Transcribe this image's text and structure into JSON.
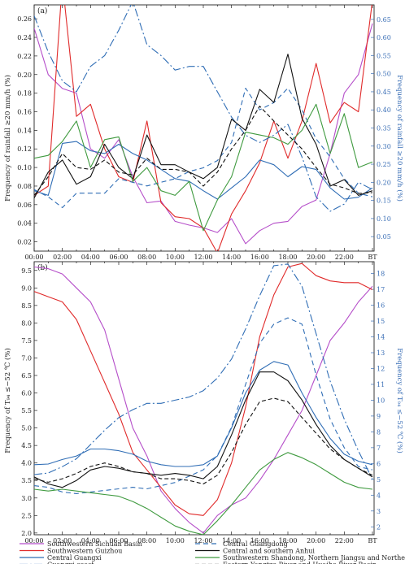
{
  "chart_data": [
    {
      "type": "line",
      "panel_label": "(a)",
      "ylabel": "Frequency of rainfall ≥20 mm/h (%)",
      "y2label": "Frequency of rainfall ≥20 mm/h (%)",
      "ylim": [
        0.01,
        0.275
      ],
      "y2lim": [
        0.01,
        0.69
      ],
      "yticks": [
        "0.02",
        "0.04",
        "0.06",
        "0.08",
        "0.10",
        "0.12",
        "0.14",
        "0.16",
        "0.18",
        "0.20",
        "0.22",
        "0.24",
        "0.26"
      ],
      "y2ticks": [
        "0.05",
        "0.10",
        "0.15",
        "0.20",
        "0.25",
        "0.30",
        "0.35",
        "0.40",
        "0.45",
        "0.50",
        "0.55",
        "0.60",
        "0.65"
      ],
      "xticks": [
        "00:00",
        "02:00",
        "04:00",
        "06:00",
        "08:00",
        "10:00",
        "12:00",
        "14:00",
        "16:00",
        "18:00",
        "20:00",
        "22:00",
        "BT"
      ],
      "x": [
        0,
        1,
        2,
        3,
        4,
        5,
        6,
        7,
        8,
        9,
        10,
        11,
        12,
        13,
        14,
        15,
        16,
        17,
        18,
        19,
        20,
        21,
        22,
        23,
        24
      ],
      "series": [
        {
          "name": "Southwestern Sichuan Basin",
          "color": "#b54ec9",
          "dash": "",
          "axis": "left",
          "values": [
            0.25,
            0.2,
            0.185,
            0.18,
            0.12,
            0.11,
            0.13,
            0.09,
            0.062,
            0.064,
            0.042,
            0.038,
            0.035,
            0.03,
            0.045,
            0.018,
            0.032,
            0.04,
            0.042,
            0.058,
            0.065,
            0.115,
            0.18,
            0.2,
            0.255
          ]
        },
        {
          "name": "Southwestern Guizhou",
          "color": "#e02a2a",
          "dash": "",
          "axis": "left",
          "values": [
            0.07,
            0.08,
            0.3,
            0.155,
            0.168,
            0.12,
            0.09,
            0.084,
            0.15,
            0.062,
            0.047,
            0.045,
            0.035,
            0.008,
            0.05,
            0.075,
            0.105,
            0.15,
            0.11,
            0.15,
            0.212,
            0.148,
            0.17,
            0.16,
            0.28
          ]
        },
        {
          "name": "Central Guangxi",
          "color": "#2f6db5",
          "dash": "",
          "axis": "left",
          "values": [
            0.075,
            0.07,
            0.126,
            0.128,
            0.118,
            0.115,
            0.125,
            0.115,
            0.108,
            0.098,
            0.088,
            0.085,
            0.075,
            0.066,
            0.078,
            0.09,
            0.108,
            0.103,
            0.09,
            0.101,
            0.098,
            0.078,
            0.066,
            0.068,
            0.078
          ]
        },
        {
          "name": "Guangxi coast",
          "color": "#2f6db5",
          "dash": "10,3,2,3",
          "axis": "right",
          "values": [
            0.66,
            0.56,
            0.48,
            0.45,
            0.52,
            0.55,
            0.62,
            0.7,
            0.58,
            0.55,
            0.51,
            0.52,
            0.52,
            0.45,
            0.38,
            0.33,
            0.31,
            0.33,
            0.36,
            0.27,
            0.16,
            0.12,
            0.14,
            0.2,
            0.18
          ]
        },
        {
          "name": "Central Guangdong",
          "color": "#2f6db5",
          "dash": "6,4",
          "axis": "right",
          "values": [
            0.18,
            0.16,
            0.13,
            0.17,
            0.17,
            0.17,
            0.21,
            0.2,
            0.19,
            0.2,
            0.21,
            0.23,
            0.24,
            0.26,
            0.31,
            0.46,
            0.4,
            0.42,
            0.46,
            0.4,
            0.32,
            0.27,
            0.21,
            0.17,
            0.16
          ]
        },
        {
          "name": "Central and southern Anhui",
          "color": "#111111",
          "dash": "",
          "axis": "left",
          "values": [
            0.067,
            0.095,
            0.108,
            0.082,
            0.09,
            0.125,
            0.1,
            0.088,
            0.135,
            0.103,
            0.103,
            0.095,
            0.088,
            0.1,
            0.152,
            0.14,
            0.184,
            0.17,
            0.222,
            0.153,
            0.125,
            0.08,
            0.087,
            0.07,
            0.075
          ]
        },
        {
          "name": "Southwestern Shandong, Northern Jiangsu and Northern Anhui",
          "color": "#3f9a3f",
          "dash": "",
          "axis": "left",
          "values": [
            0.11,
            0.113,
            0.128,
            0.15,
            0.1,
            0.13,
            0.133,
            0.085,
            0.1,
            0.075,
            0.07,
            0.085,
            0.032,
            0.065,
            0.09,
            0.138,
            0.135,
            0.132,
            0.125,
            0.14,
            0.168,
            0.115,
            0.158,
            0.1,
            0.106
          ]
        },
        {
          "name": "Eastern Yangtze River and Huaihe River Basin",
          "color": "#111111",
          "dash": "5,3",
          "axis": "left",
          "values": [
            0.07,
            0.09,
            0.115,
            0.1,
            0.098,
            0.108,
            0.095,
            0.092,
            0.11,
            0.098,
            0.098,
            0.095,
            0.08,
            0.095,
            0.12,
            0.14,
            0.166,
            0.15,
            0.135,
            0.12,
            0.1,
            0.082,
            0.078,
            0.072,
            0.073
          ]
        }
      ]
    },
    {
      "type": "line",
      "panel_label": "(b)",
      "ylabel": "Frequency of T₉₄ ≤−52 ℃ (%)",
      "y2label": "Frequency of T₉₄ ≤−52 ℃ (%)",
      "ylim": [
        1.95,
        9.75
      ],
      "y2lim": [
        1.5,
        18.75
      ],
      "yticks": [
        "2.0",
        "2.5",
        "3.0",
        "3.5",
        "4.0",
        "4.5",
        "5.0",
        "5.5",
        "6.0",
        "6.5",
        "7.0",
        "7.5",
        "8.0",
        "8.5",
        "9.0",
        "9.5"
      ],
      "y2ticks": [
        "2",
        "3",
        "4",
        "5",
        "6",
        "7",
        "8",
        "9",
        "10",
        "11",
        "12",
        "13",
        "14",
        "15",
        "16",
        "17",
        "18"
      ],
      "xticks": [
        "00:00",
        "02:00",
        "04:00",
        "06:00",
        "08:00",
        "10:00",
        "12:00",
        "14:00",
        "16:00",
        "18:00",
        "20:00",
        "22:00",
        "BT"
      ],
      "x": [
        0,
        1,
        2,
        3,
        4,
        5,
        6,
        7,
        8,
        9,
        10,
        11,
        12,
        13,
        14,
        15,
        16,
        17,
        18,
        19,
        20,
        21,
        22,
        23,
        24
      ],
      "series": [
        {
          "name": "Southwestern Sichuan Basin",
          "color": "#b54ec9",
          "dash": "",
          "axis": "left",
          "values": [
            9.6,
            9.55,
            9.4,
            9.0,
            8.6,
            7.8,
            6.4,
            5.0,
            4.2,
            3.2,
            2.7,
            2.3,
            2.0,
            2.5,
            2.8,
            3.0,
            3.5,
            4.1,
            4.8,
            5.5,
            6.5,
            7.5,
            8.0,
            8.6,
            9.05
          ]
        },
        {
          "name": "Southwestern Guizhou",
          "color": "#e02a2a",
          "dash": "",
          "axis": "left",
          "values": [
            8.9,
            8.75,
            8.6,
            8.1,
            7.2,
            6.3,
            5.4,
            4.3,
            3.8,
            3.3,
            2.8,
            2.55,
            2.5,
            2.95,
            4.0,
            5.6,
            7.6,
            8.8,
            9.6,
            9.7,
            9.35,
            9.2,
            9.15,
            9.15,
            8.95
          ]
        },
        {
          "name": "Central Guangxi",
          "color": "#2f6db5",
          "dash": "",
          "axis": "left",
          "values": [
            3.95,
            3.97,
            4.1,
            4.2,
            4.4,
            4.4,
            4.35,
            4.25,
            4.05,
            3.95,
            3.9,
            3.9,
            3.95,
            4.2,
            5.0,
            6.0,
            6.65,
            6.9,
            6.8,
            6.0,
            5.3,
            4.7,
            4.25,
            4.05,
            3.95
          ]
        },
        {
          "name": "Guangxi coast",
          "color": "#2f6db5",
          "dash": "10,3,2,3",
          "axis": "right",
          "values": [
            5.3,
            5.4,
            5.8,
            6.3,
            7.2,
            8.1,
            8.9,
            9.4,
            9.8,
            9.8,
            10.0,
            10.2,
            10.6,
            11.4,
            12.6,
            14.5,
            16.6,
            18.5,
            18.6,
            17.2,
            14.2,
            11.2,
            8.8,
            6.8,
            5.0
          ]
        },
        {
          "name": "Central Guangdong",
          "color": "#2f6db5",
          "dash": "6,4",
          "axis": "right",
          "values": [
            4.6,
            4.5,
            4.2,
            4.1,
            4.2,
            4.3,
            4.4,
            4.5,
            4.4,
            4.6,
            4.8,
            5.2,
            5.6,
            6.5,
            8.3,
            11.0,
            13.6,
            14.8,
            15.2,
            14.8,
            11.6,
            8.8,
            7.0,
            5.8,
            5.6
          ]
        },
        {
          "name": "Central and southern Anhui",
          "color": "#111111",
          "dash": "",
          "axis": "left",
          "values": [
            3.6,
            3.4,
            3.3,
            3.5,
            3.8,
            3.9,
            3.85,
            3.75,
            3.7,
            3.65,
            3.7,
            3.65,
            3.55,
            3.9,
            4.8,
            5.8,
            6.6,
            6.6,
            6.35,
            5.8,
            5.1,
            4.5,
            4.1,
            3.85,
            3.6
          ]
        },
        {
          "name": "Southwestern Shandong, Northern Jiangsu and Northern Anhui",
          "color": "#3f9a3f",
          "dash": "",
          "axis": "left",
          "values": [
            3.25,
            3.2,
            3.25,
            3.2,
            3.15,
            3.1,
            3.05,
            2.9,
            2.7,
            2.45,
            2.2,
            2.05,
            1.95,
            2.35,
            2.8,
            3.3,
            3.8,
            4.1,
            4.3,
            4.15,
            3.95,
            3.7,
            3.45,
            3.3,
            3.25
          ]
        },
        {
          "name": "Eastern Yangtze River and Huaihe River Basin",
          "color": "#111111",
          "dash": "5,3",
          "axis": "left",
          "values": [
            3.55,
            3.45,
            3.55,
            3.7,
            3.9,
            4.0,
            3.9,
            3.75,
            3.7,
            3.55,
            3.55,
            3.5,
            3.4,
            3.65,
            4.3,
            5.1,
            5.75,
            5.85,
            5.75,
            5.3,
            4.85,
            4.4,
            4.1,
            3.85,
            3.65
          ]
        }
      ]
    }
  ],
  "legend": [
    {
      "label": "Southwestern Sichuan Basin",
      "color": "#b54ec9",
      "dash": ""
    },
    {
      "label": "Central Guangdong",
      "color": "#2f6db5",
      "dash": "6,4"
    },
    {
      "label": "Southwestern Guizhou",
      "color": "#e02a2a",
      "dash": ""
    },
    {
      "label": "Central and southern Anhui",
      "color": "#111111",
      "dash": ""
    },
    {
      "label": "Central Guangxi",
      "color": "#2f6db5",
      "dash": ""
    },
    {
      "label": "Southwestern Shandong, Northern Jiangsu and Northern Anhui",
      "color": "#3f9a3f",
      "dash": ""
    },
    {
      "label": "Guangxi coast",
      "color": "#2f6db5",
      "dash": "10,3,2,3"
    },
    {
      "label": "Eastern Yangtze River and Huaihe River Basin",
      "color": "#111111",
      "dash": "5,3"
    }
  ]
}
